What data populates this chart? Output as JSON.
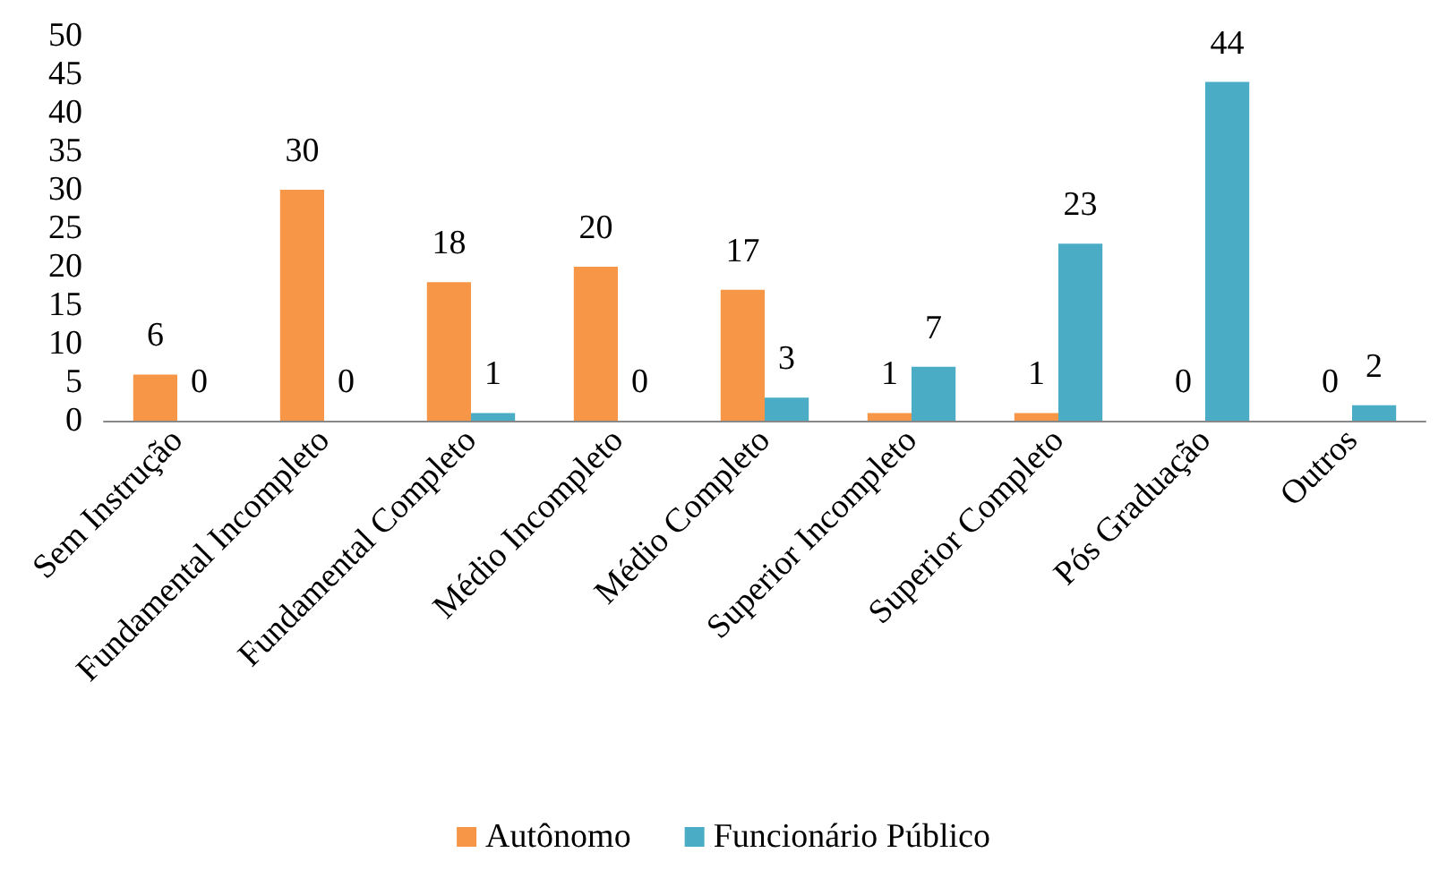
{
  "chart_data": {
    "type": "bar",
    "categories": [
      "Sem Instrução",
      "Fundamental Incompleto",
      "Fundamental Completo",
      "Médio Incompleto",
      "Médio Completo",
      "Superior Incompleto",
      "Superior Completo",
      "Pós Graduação",
      "Outros"
    ],
    "series": [
      {
        "name": "Autônomo",
        "color": "#f79646",
        "values": [
          6,
          30,
          18,
          20,
          17,
          1,
          1,
          0,
          0
        ]
      },
      {
        "name": "Funcionário Público",
        "color": "#4bacc6",
        "values": [
          0,
          0,
          1,
          0,
          3,
          7,
          23,
          44,
          2
        ]
      }
    ],
    "ylim": [
      0,
      50
    ],
    "yticks": [
      0,
      5,
      10,
      15,
      20,
      25,
      30,
      35,
      40,
      45,
      50
    ],
    "grid": false,
    "legend": "bottom",
    "data_labels": true
  }
}
